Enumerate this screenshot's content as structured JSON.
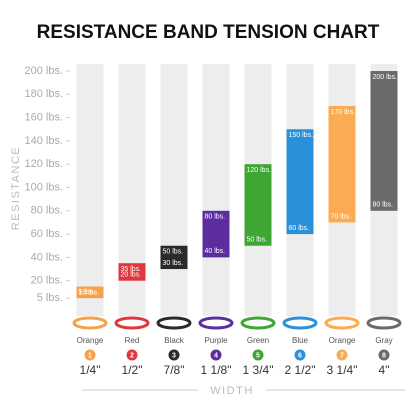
{
  "chart_data": {
    "type": "range-bar",
    "title": "RESISTANCE BAND TENSION CHART",
    "y_label": "RESISTANCE",
    "x_label": "WIDTH",
    "categories": [
      "Orange",
      "Red",
      "Black",
      "Purple",
      "Green",
      "Blue",
      "Orange",
      "Gray"
    ],
    "badges": [
      "1",
      "2",
      "3",
      "4",
      "5",
      "6",
      "7",
      "8"
    ],
    "widths": [
      "1/4\"",
      "1/2\"",
      "7/8\"",
      "1 1/8\"",
      "1 3/4\"",
      "2 1/2\"",
      "3 1/4\"",
      "4\""
    ],
    "colors": [
      "#f6a24a",
      "#e0363f",
      "#2a2a2a",
      "#5b2d9e",
      "#3ea632",
      "#2a90da",
      "#fbab52",
      "#6a6a6a"
    ],
    "series": [
      {
        "values": [
          5,
          20,
          30,
          40,
          50,
          60,
          70,
          80
        ],
        "value_labels": [
          "5 lbs.",
          "20 lbs.",
          "30 lbs.",
          "40 lbs.",
          "50 lbs.",
          "60 lbs.",
          "70 lbs.",
          "80 lbs."
        ]
      },
      {
        "values": [
          15,
          35,
          50,
          80,
          120,
          150,
          170,
          200
        ],
        "value_labels": [
          "15 lbs.",
          "35 lbs.",
          "50 lbs.",
          "80 lbs.",
          "120 lbs.",
          "150 lbs.",
          "170 lbs.",
          "200 lbs."
        ]
      }
    ],
    "ylim": [
      0,
      200
    ],
    "yticks": [
      {
        "value": 5,
        "label": "5 lbs."
      },
      {
        "value": 20,
        "label": "20 lbs."
      },
      {
        "value": 40,
        "label": "40 lbs."
      },
      {
        "value": 60,
        "label": "60 lbs."
      },
      {
        "value": 80,
        "label": "80 lbs."
      },
      {
        "value": 100,
        "label": "100 lbs."
      },
      {
        "value": 120,
        "label": "120 lbs."
      },
      {
        "value": 140,
        "label": "140 lbs."
      },
      {
        "value": 160,
        "label": "160 lbs."
      },
      {
        "value": 180,
        "label": "180 lbs."
      },
      {
        "value": 200,
        "label": "200 lbs."
      }
    ]
  }
}
